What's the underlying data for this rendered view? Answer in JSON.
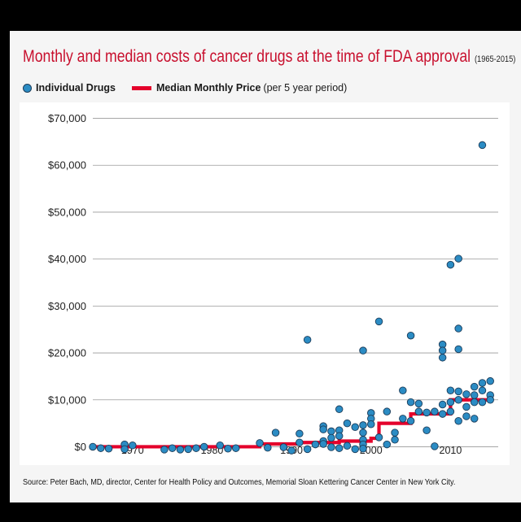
{
  "header": {
    "title": "Monthly and median costs of cancer drugs at the time of FDA approval",
    "years": "(1965-2015)"
  },
  "legend": {
    "drugs_label": "Individual Drugs",
    "median_label": "Median Monthly Price",
    "median_note": "(per 5 year period)"
  },
  "source": "Source: Peter Bach, MD, director, Center for Health Policy and Outcomes, Memorial Sloan Kettering Cancer Center in New York City.",
  "colors": {
    "title_red": "#c8102e",
    "median_red": "#e4002b",
    "dot_fill": "#2b8cc4",
    "dot_stroke": "#1d3d5a",
    "grid": "#9a9a9a"
  },
  "chart_data": {
    "type": "scatter",
    "title": "Monthly and median costs of cancer drugs at the time of FDA approval (1965-2015)",
    "xlabel": "",
    "ylabel": "",
    "xlim": [
      1965,
      2016
    ],
    "ylim": [
      -2000,
      72000
    ],
    "x_ticks": [
      1970,
      1980,
      1990,
      2000,
      2010
    ],
    "x_tick_labels": [
      "1970",
      "1980",
      "1990",
      "2000",
      "2010"
    ],
    "y_ticks": [
      0,
      10000,
      20000,
      30000,
      40000,
      50000,
      60000,
      70000
    ],
    "y_tick_labels": [
      "$0",
      "$10,000",
      "$20,000",
      "$30,000",
      "$40,000",
      "$50,000",
      "$60,000",
      "$70,000"
    ],
    "grid": true,
    "series": [
      {
        "name": "Individual Drugs",
        "kind": "scatter",
        "points": [
          [
            1965,
            0
          ],
          [
            1966,
            -300
          ],
          [
            1967,
            -400
          ],
          [
            1969,
            500
          ],
          [
            1969,
            -500
          ],
          [
            1970,
            300
          ],
          [
            1974,
            -600
          ],
          [
            1975,
            -300
          ],
          [
            1976,
            -600
          ],
          [
            1977,
            -500
          ],
          [
            1978,
            -300
          ],
          [
            1979,
            0
          ],
          [
            1981,
            300
          ],
          [
            1982,
            -400
          ],
          [
            1983,
            -300
          ],
          [
            1986,
            800
          ],
          [
            1987,
            -200
          ],
          [
            1988,
            3000
          ],
          [
            1989,
            -100
          ],
          [
            1990,
            -800
          ],
          [
            1991,
            2800
          ],
          [
            1991,
            900
          ],
          [
            1992,
            22800
          ],
          [
            1992,
            -500
          ],
          [
            1993,
            500
          ],
          [
            1994,
            4400
          ],
          [
            1994,
            3700
          ],
          [
            1994,
            1200
          ],
          [
            1994,
            600
          ],
          [
            1995,
            -100
          ],
          [
            1995,
            3300
          ],
          [
            1995,
            1900
          ],
          [
            1996,
            8000
          ],
          [
            1996,
            3500
          ],
          [
            1996,
            2300
          ],
          [
            1996,
            -300
          ],
          [
            1997,
            5000
          ],
          [
            1997,
            200
          ],
          [
            1998,
            4200
          ],
          [
            1998,
            -500
          ],
          [
            1999,
            20500
          ],
          [
            1999,
            4600
          ],
          [
            1999,
            3000
          ],
          [
            1999,
            1500
          ],
          [
            1999,
            500
          ],
          [
            1999,
            -400
          ],
          [
            2000,
            7200
          ],
          [
            2000,
            6000
          ],
          [
            2000,
            4800
          ],
          [
            2001,
            26700
          ],
          [
            2001,
            2000
          ],
          [
            2002,
            7500
          ],
          [
            2002,
            500
          ],
          [
            2003,
            3000
          ],
          [
            2003,
            1500
          ],
          [
            2004,
            12000
          ],
          [
            2004,
            6000
          ],
          [
            2005,
            23700
          ],
          [
            2005,
            9500
          ],
          [
            2005,
            5500
          ],
          [
            2006,
            9200
          ],
          [
            2006,
            7500
          ],
          [
            2007,
            7300
          ],
          [
            2007,
            3500
          ],
          [
            2008,
            7500
          ],
          [
            2008,
            100
          ],
          [
            2009,
            21800
          ],
          [
            2009,
            20500
          ],
          [
            2009,
            19000
          ],
          [
            2009,
            9000
          ],
          [
            2009,
            7000
          ],
          [
            2010,
            38800
          ],
          [
            2010,
            12000
          ],
          [
            2010,
            9500
          ],
          [
            2010,
            7500
          ],
          [
            2011,
            40100
          ],
          [
            2011,
            25200
          ],
          [
            2011,
            20800
          ],
          [
            2011,
            11800
          ],
          [
            2011,
            10000
          ],
          [
            2011,
            5500
          ],
          [
            2012,
            11200
          ],
          [
            2012,
            8500
          ],
          [
            2012,
            6500
          ],
          [
            2013,
            12800
          ],
          [
            2013,
            11000
          ],
          [
            2013,
            9500
          ],
          [
            2013,
            6000
          ],
          [
            2014,
            64300
          ],
          [
            2014,
            13600
          ],
          [
            2014,
            12000
          ],
          [
            2014,
            9500
          ],
          [
            2015,
            14000
          ],
          [
            2015,
            11000
          ],
          [
            2015,
            10000
          ]
        ]
      },
      {
        "name": "Median Monthly Price",
        "kind": "step",
        "segments": [
          {
            "from": 1965,
            "to": 1986,
            "value": 0
          },
          {
            "from": 1986,
            "to": 1991,
            "value": 600
          },
          {
            "from": 1991,
            "to": 1996,
            "value": 900
          },
          {
            "from": 1996,
            "to": 2000,
            "value": 1200
          },
          {
            "from": 2000,
            "to": 2001,
            "value": 1800
          },
          {
            "from": 2001,
            "to": 2005,
            "value": 5000
          },
          {
            "from": 2005,
            "to": 2010,
            "value": 7000
          },
          {
            "from": 2010,
            "to": 2015,
            "value": 10000
          }
        ]
      }
    ]
  }
}
